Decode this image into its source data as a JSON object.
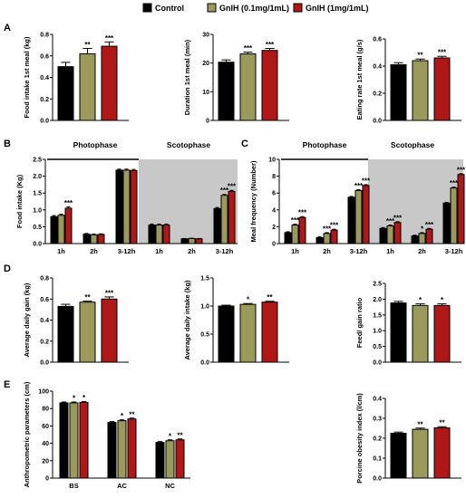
{
  "legend": {
    "items": [
      {
        "label": "Control",
        "color": "#000000"
      },
      {
        "label": "GnIH (0.1mg/1mL)",
        "color": "#9a9a5a"
      },
      {
        "label": "GnIH (1mg/1mL)",
        "color": "#b01818"
      }
    ]
  },
  "panels": [
    {
      "label": "A"
    },
    {
      "label": "B"
    },
    {
      "label": "C"
    },
    {
      "label": "D"
    },
    {
      "label": "E"
    }
  ],
  "chart_data": [
    {
      "id": "A1",
      "panel": "A",
      "type": "bar",
      "ylabel": "Food intake 1st meal (kg)",
      "ylim": [
        0,
        0.8
      ],
      "yticks": [
        "0.0",
        "0.2",
        "0.4",
        "0.6",
        "0.8"
      ],
      "values": [
        0.5,
        0.62,
        0.69
      ],
      "errors": [
        0.04,
        0.05,
        0.04
      ],
      "sig": [
        "",
        "**",
        "***"
      ]
    },
    {
      "id": "A2",
      "panel": "A",
      "type": "bar",
      "ylabel": "Duration 1st meal (min)",
      "ylim": [
        0,
        30
      ],
      "yticks": [
        "0",
        "10",
        "20",
        "30"
      ],
      "values": [
        20.3,
        23.2,
        24.4
      ],
      "errors": [
        0.8,
        0.6,
        0.7
      ],
      "sig": [
        "",
        "***",
        "***"
      ]
    },
    {
      "id": "A3",
      "panel": "A",
      "type": "bar",
      "ylabel": "Eating rate 1st meal (g/s)",
      "ylim": [
        0,
        0.6
      ],
      "yticks": [
        "0.0",
        "0.2",
        "0.4",
        "0.6"
      ],
      "values": [
        0.41,
        0.44,
        0.46
      ],
      "errors": [
        0.015,
        0.012,
        0.012
      ],
      "sig": [
        "",
        "**",
        "***"
      ]
    },
    {
      "id": "B",
      "panel": "B",
      "type": "bar",
      "ylabel": "Food intake (Kg)",
      "ylim": [
        0,
        2.5
      ],
      "yticks": [
        "0.0",
        "0.5",
        "1.0",
        "1.5",
        "2.0",
        "2.5"
      ],
      "phases": [
        "Photophase",
        "Scotophase"
      ],
      "groups": [
        {
          "label": "1h",
          "values": [
            0.8,
            0.84,
            1.05
          ],
          "errors": [
            0.03,
            0.03,
            0.04
          ],
          "sig": [
            "",
            "",
            "***"
          ]
        },
        {
          "label": "2h",
          "values": [
            0.28,
            0.26,
            0.27
          ],
          "errors": [
            0.02,
            0.02,
            0.02
          ],
          "sig": [
            "",
            "",
            ""
          ]
        },
        {
          "label": "3-12h",
          "values": [
            2.18,
            2.18,
            2.17
          ],
          "errors": [
            0.03,
            0.03,
            0.03
          ],
          "sig": [
            "",
            "",
            ""
          ]
        },
        {
          "label": "1h",
          "values": [
            0.55,
            0.55,
            0.55
          ],
          "errors": [
            0.03,
            0.03,
            0.03
          ],
          "sig": [
            "",
            "",
            ""
          ]
        },
        {
          "label": "2h",
          "values": [
            0.14,
            0.15,
            0.14
          ],
          "errors": [
            0.01,
            0.01,
            0.01
          ],
          "sig": [
            "",
            "",
            ""
          ]
        },
        {
          "label": "3-12h",
          "values": [
            1.04,
            1.43,
            1.55
          ],
          "errors": [
            0.03,
            0.03,
            0.03
          ],
          "sig": [
            "",
            "***",
            "***"
          ]
        }
      ]
    },
    {
      "id": "C",
      "panel": "C",
      "type": "bar",
      "ylabel": "Meal frequency (Number)",
      "ylim": [
        0,
        10
      ],
      "yticks": [
        "0",
        "2",
        "4",
        "6",
        "8",
        "10"
      ],
      "phases": [
        "Photophase",
        "Scotophase"
      ],
      "groups": [
        {
          "label": "1h",
          "values": [
            1.3,
            2.2,
            3.1
          ],
          "errors": [
            0.1,
            0.1,
            0.1
          ],
          "sig": [
            "",
            "***",
            "***"
          ]
        },
        {
          "label": "2h",
          "values": [
            0.7,
            1.2,
            1.6
          ],
          "errors": [
            0.1,
            0.1,
            0.1
          ],
          "sig": [
            "",
            "***",
            "***"
          ]
        },
        {
          "label": "3-12h",
          "values": [
            5.5,
            6.3,
            6.9
          ],
          "errors": [
            0.1,
            0.1,
            0.1
          ],
          "sig": [
            "",
            "***",
            "***"
          ]
        },
        {
          "label": "1h",
          "values": [
            1.8,
            2.1,
            2.5
          ],
          "errors": [
            0.1,
            0.1,
            0.1
          ],
          "sig": [
            "",
            "***",
            "***"
          ]
        },
        {
          "label": "2h",
          "values": [
            0.9,
            1.2,
            1.7
          ],
          "errors": [
            0.1,
            0.1,
            0.1
          ],
          "sig": [
            "",
            "*",
            "***"
          ]
        },
        {
          "label": "3-12h",
          "values": [
            4.8,
            6.6,
            8.2
          ],
          "errors": [
            0.1,
            0.1,
            0.1
          ],
          "sig": [
            "",
            "***",
            "***"
          ]
        }
      ]
    },
    {
      "id": "D1",
      "panel": "D",
      "type": "bar",
      "ylabel": "Average daily gain (kg)",
      "ylim": [
        0,
        0.8
      ],
      "yticks": [
        "0.0",
        "0.2",
        "0.4",
        "0.6",
        "0.8"
      ],
      "values": [
        0.53,
        0.57,
        0.6
      ],
      "errors": [
        0.02,
        0.01,
        0.02
      ],
      "sig": [
        "",
        "**",
        "***"
      ]
    },
    {
      "id": "D2",
      "panel": "D",
      "type": "bar",
      "ylabel": "Average daily intake (kg)",
      "ylim": [
        0,
        1.5
      ],
      "yticks": [
        "0.0",
        "0.5",
        "1.0",
        "1.5"
      ],
      "values": [
        1.0,
        1.03,
        1.07
      ],
      "errors": [
        0.015,
        0.015,
        0.015
      ],
      "sig": [
        "",
        "*",
        "**"
      ]
    },
    {
      "id": "D3",
      "panel": "D",
      "type": "bar",
      "ylabel": "Feed/ gain ratio",
      "ylim": [
        0,
        2.5
      ],
      "yticks": [
        "0.0",
        "0.5",
        "1.0",
        "1.5",
        "2.0",
        "2.5"
      ],
      "values": [
        1.88,
        1.8,
        1.8
      ],
      "errors": [
        0.05,
        0.05,
        0.05
      ],
      "sig": [
        "",
        "*",
        "*"
      ]
    },
    {
      "id": "E1",
      "panel": "E",
      "type": "bar",
      "ylabel": "Anthropometric parameters (cm)",
      "ylim": [
        0,
        100
      ],
      "yticks": [
        "0",
        "20",
        "40",
        "60",
        "80",
        "100"
      ],
      "groups": [
        {
          "label": "BS",
          "values": [
            86.5,
            86.5,
            87.0
          ],
          "errors": [
            1.0,
            1.0,
            1.0
          ],
          "sig": [
            "",
            "*",
            "*"
          ]
        },
        {
          "label": "AC",
          "values": [
            64.0,
            66.0,
            68.0
          ],
          "errors": [
            1.0,
            1.0,
            1.0
          ],
          "sig": [
            "",
            "*",
            "**"
          ]
        },
        {
          "label": "NC",
          "values": [
            41.0,
            43.0,
            44.0
          ],
          "errors": [
            1.0,
            1.0,
            1.0
          ],
          "sig": [
            "",
            "*",
            "**"
          ]
        }
      ]
    },
    {
      "id": "E2",
      "panel": "E",
      "type": "bar",
      "ylabel": "Porcine obesity index (l/cm)",
      "ylim": [
        0,
        0.4
      ],
      "yticks": [
        "0.0",
        "0.1",
        "0.2",
        "0.3",
        "0.4"
      ],
      "values": [
        0.225,
        0.245,
        0.252
      ],
      "errors": [
        0.006,
        0.006,
        0.006
      ],
      "sig": [
        "",
        "**",
        "**"
      ]
    }
  ]
}
